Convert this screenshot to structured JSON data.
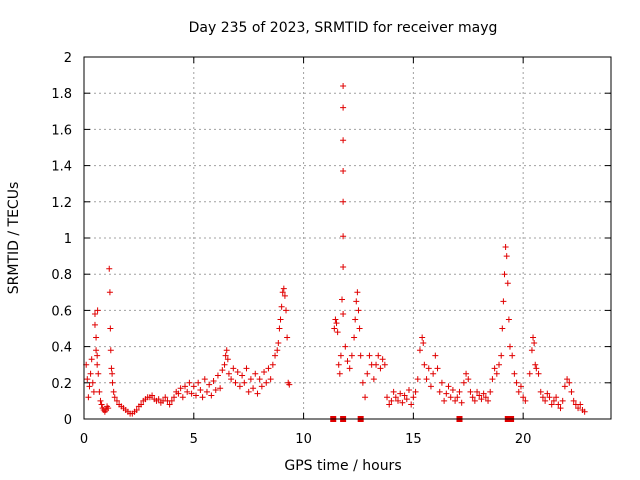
{
  "chart_data": {
    "type": "scatter",
    "title": "Day 235 of 2023, SRMTID for receiver mayg",
    "xlabel": "GPS time / hours",
    "ylabel": "SRMTID / TECUs",
    "xlim": [
      0,
      24
    ],
    "ylim": [
      0,
      2
    ],
    "x_ticks": [
      0,
      5,
      10,
      15,
      20
    ],
    "y_ticks": [
      0,
      0.2,
      0.4,
      0.6,
      0.8,
      1,
      1.2,
      1.4,
      1.6,
      1.8,
      2
    ],
    "x_tick_labels": [
      "0",
      "5",
      "10",
      "15",
      "20"
    ],
    "y_tick_labels": [
      "0",
      "0.2",
      "0.4",
      "0.6",
      "0.8",
      "1",
      "1.2",
      "1.4",
      "1.6",
      "1.8",
      "2"
    ],
    "grid": true,
    "marker": "plus",
    "series": [
      {
        "name": "SRMTID",
        "color": "#e00000",
        "points": [
          [
            0.1,
            0.3
          ],
          [
            0.15,
            0.22
          ],
          [
            0.2,
            0.12
          ],
          [
            0.25,
            0.18
          ],
          [
            0.3,
            0.25
          ],
          [
            0.35,
            0.33
          ],
          [
            0.4,
            0.2
          ],
          [
            0.45,
            0.15
          ],
          [
            0.5,
            0.58
          ],
          [
            0.5,
            0.52
          ],
          [
            0.55,
            0.45
          ],
          [
            0.55,
            0.38
          ],
          [
            0.6,
            0.3
          ],
          [
            0.6,
            0.35
          ],
          [
            0.62,
            0.6
          ],
          [
            0.65,
            0.25
          ],
          [
            0.7,
            0.15
          ],
          [
            0.75,
            0.1
          ],
          [
            0.8,
            0.08
          ],
          [
            0.85,
            0.06
          ],
          [
            0.9,
            0.05
          ],
          [
            0.95,
            0.04
          ],
          [
            1.0,
            0.05
          ],
          [
            1.05,
            0.07
          ],
          [
            1.1,
            0.06
          ],
          [
            1.15,
            0.83
          ],
          [
            1.18,
            0.7
          ],
          [
            1.2,
            0.5
          ],
          [
            1.22,
            0.38
          ],
          [
            1.25,
            0.28
          ],
          [
            1.28,
            0.25
          ],
          [
            1.3,
            0.2
          ],
          [
            1.35,
            0.15
          ],
          [
            1.4,
            0.12
          ],
          [
            1.5,
            0.1
          ],
          [
            1.6,
            0.08
          ],
          [
            1.7,
            0.07
          ],
          [
            1.8,
            0.06
          ],
          [
            1.9,
            0.05
          ],
          [
            2.0,
            0.04
          ],
          [
            2.1,
            0.03
          ],
          [
            2.2,
            0.03
          ],
          [
            2.3,
            0.04
          ],
          [
            2.4,
            0.05
          ],
          [
            2.5,
            0.07
          ],
          [
            2.6,
            0.08
          ],
          [
            2.7,
            0.1
          ],
          [
            2.8,
            0.11
          ],
          [
            2.9,
            0.12
          ],
          [
            3.0,
            0.12
          ],
          [
            3.1,
            0.13
          ],
          [
            3.2,
            0.11
          ],
          [
            3.3,
            0.1
          ],
          [
            3.4,
            0.11
          ],
          [
            3.5,
            0.09
          ],
          [
            3.6,
            0.1
          ],
          [
            3.7,
            0.12
          ],
          [
            3.8,
            0.1
          ],
          [
            3.9,
            0.08
          ],
          [
            4.0,
            0.1
          ],
          [
            4.1,
            0.12
          ],
          [
            4.2,
            0.15
          ],
          [
            4.3,
            0.14
          ],
          [
            4.4,
            0.17
          ],
          [
            4.5,
            0.12
          ],
          [
            4.6,
            0.18
          ],
          [
            4.7,
            0.15
          ],
          [
            4.8,
            0.2
          ],
          [
            4.9,
            0.14
          ],
          [
            5.0,
            0.18
          ],
          [
            5.1,
            0.13
          ],
          [
            5.2,
            0.2
          ],
          [
            5.3,
            0.16
          ],
          [
            5.4,
            0.12
          ],
          [
            5.5,
            0.22
          ],
          [
            5.6,
            0.15
          ],
          [
            5.7,
            0.19
          ],
          [
            5.8,
            0.13
          ],
          [
            5.9,
            0.21
          ],
          [
            6.0,
            0.16
          ],
          [
            6.1,
            0.24
          ],
          [
            6.2,
            0.17
          ],
          [
            6.3,
            0.27
          ],
          [
            6.4,
            0.3
          ],
          [
            6.45,
            0.35
          ],
          [
            6.5,
            0.38
          ],
          [
            6.55,
            0.33
          ],
          [
            6.6,
            0.25
          ],
          [
            6.7,
            0.22
          ],
          [
            6.8,
            0.28
          ],
          [
            6.9,
            0.2
          ],
          [
            7.0,
            0.26
          ],
          [
            7.1,
            0.18
          ],
          [
            7.2,
            0.24
          ],
          [
            7.3,
            0.2
          ],
          [
            7.4,
            0.28
          ],
          [
            7.5,
            0.15
          ],
          [
            7.6,
            0.22
          ],
          [
            7.7,
            0.17
          ],
          [
            7.8,
            0.25
          ],
          [
            7.9,
            0.14
          ],
          [
            8.0,
            0.22
          ],
          [
            8.1,
            0.18
          ],
          [
            8.2,
            0.26
          ],
          [
            8.3,
            0.2
          ],
          [
            8.4,
            0.28
          ],
          [
            8.5,
            0.22
          ],
          [
            8.6,
            0.3
          ],
          [
            8.7,
            0.35
          ],
          [
            8.8,
            0.38
          ],
          [
            8.85,
            0.42
          ],
          [
            8.9,
            0.5
          ],
          [
            8.95,
            0.55
          ],
          [
            9.0,
            0.62
          ],
          [
            9.05,
            0.7
          ],
          [
            9.1,
            0.72
          ],
          [
            9.15,
            0.68
          ],
          [
            9.2,
            0.6
          ],
          [
            9.25,
            0.45
          ],
          [
            9.3,
            0.2
          ],
          [
            9.35,
            0.19
          ],
          [
            11.4,
            0.5
          ],
          [
            11.45,
            0.55
          ],
          [
            11.5,
            0.53
          ],
          [
            11.55,
            0.48
          ],
          [
            11.6,
            0.3
          ],
          [
            11.65,
            0.25
          ],
          [
            11.7,
            0.35
          ],
          [
            11.75,
            0.66
          ],
          [
            11.8,
            1.84
          ],
          [
            11.8,
            1.72
          ],
          [
            11.8,
            1.54
          ],
          [
            11.8,
            1.37
          ],
          [
            11.8,
            1.2
          ],
          [
            11.8,
            1.01
          ],
          [
            11.8,
            0.84
          ],
          [
            11.8,
            0.58
          ],
          [
            11.9,
            0.4
          ],
          [
            12.0,
            0.32
          ],
          [
            12.1,
            0.28
          ],
          [
            12.2,
            0.35
          ],
          [
            12.3,
            0.45
          ],
          [
            12.35,
            0.55
          ],
          [
            12.4,
            0.65
          ],
          [
            12.45,
            0.7
          ],
          [
            12.5,
            0.6
          ],
          [
            12.55,
            0.5
          ],
          [
            12.6,
            0.35
          ],
          [
            12.7,
            0.2
          ],
          [
            12.8,
            0.12
          ],
          [
            12.9,
            0.25
          ],
          [
            13.0,
            0.35
          ],
          [
            13.1,
            0.3
          ],
          [
            13.2,
            0.22
          ],
          [
            13.3,
            0.3
          ],
          [
            13.4,
            0.35
          ],
          [
            13.5,
            0.28
          ],
          [
            13.6,
            0.33
          ],
          [
            13.7,
            0.3
          ],
          [
            13.8,
            0.12
          ],
          [
            13.9,
            0.08
          ],
          [
            14.0,
            0.1
          ],
          [
            14.1,
            0.15
          ],
          [
            14.2,
            0.12
          ],
          [
            14.3,
            0.1
          ],
          [
            14.4,
            0.14
          ],
          [
            14.5,
            0.09
          ],
          [
            14.6,
            0.13
          ],
          [
            14.7,
            0.11
          ],
          [
            14.8,
            0.16
          ],
          [
            14.9,
            0.08
          ],
          [
            15.0,
            0.12
          ],
          [
            15.1,
            0.15
          ],
          [
            15.2,
            0.22
          ],
          [
            15.3,
            0.38
          ],
          [
            15.4,
            0.45
          ],
          [
            15.45,
            0.42
          ],
          [
            15.5,
            0.3
          ],
          [
            15.6,
            0.22
          ],
          [
            15.7,
            0.28
          ],
          [
            15.8,
            0.18
          ],
          [
            15.9,
            0.25
          ],
          [
            16.0,
            0.35
          ],
          [
            16.1,
            0.28
          ],
          [
            16.2,
            0.15
          ],
          [
            16.3,
            0.2
          ],
          [
            16.4,
            0.1
          ],
          [
            16.5,
            0.14
          ],
          [
            16.6,
            0.18
          ],
          [
            16.7,
            0.12
          ],
          [
            16.8,
            0.16
          ],
          [
            16.9,
            0.1
          ],
          [
            17.0,
            0.12
          ],
          [
            17.1,
            0.15
          ],
          [
            17.2,
            0.09
          ],
          [
            17.3,
            0.2
          ],
          [
            17.4,
            0.25
          ],
          [
            17.5,
            0.22
          ],
          [
            17.6,
            0.15
          ],
          [
            17.7,
            0.12
          ],
          [
            17.8,
            0.1
          ],
          [
            17.9,
            0.15
          ],
          [
            18.0,
            0.13
          ],
          [
            18.1,
            0.11
          ],
          [
            18.2,
            0.14
          ],
          [
            18.3,
            0.12
          ],
          [
            18.4,
            0.1
          ],
          [
            18.5,
            0.15
          ],
          [
            18.6,
            0.22
          ],
          [
            18.7,
            0.28
          ],
          [
            18.8,
            0.25
          ],
          [
            18.9,
            0.3
          ],
          [
            19.0,
            0.35
          ],
          [
            19.05,
            0.5
          ],
          [
            19.1,
            0.65
          ],
          [
            19.15,
            0.8
          ],
          [
            19.2,
            0.95
          ],
          [
            19.25,
            0.9
          ],
          [
            19.3,
            0.75
          ],
          [
            19.35,
            0.55
          ],
          [
            19.4,
            0.4
          ],
          [
            19.5,
            0.35
          ],
          [
            19.6,
            0.25
          ],
          [
            19.7,
            0.2
          ],
          [
            19.8,
            0.15
          ],
          [
            19.9,
            0.18
          ],
          [
            20.0,
            0.12
          ],
          [
            20.1,
            0.1
          ],
          [
            20.3,
            0.25
          ],
          [
            20.4,
            0.38
          ],
          [
            20.45,
            0.45
          ],
          [
            20.5,
            0.42
          ],
          [
            20.55,
            0.3
          ],
          [
            20.6,
            0.28
          ],
          [
            20.7,
            0.25
          ],
          [
            20.8,
            0.15
          ],
          [
            20.9,
            0.12
          ],
          [
            21.0,
            0.1
          ],
          [
            21.1,
            0.14
          ],
          [
            21.2,
            0.12
          ],
          [
            21.3,
            0.08
          ],
          [
            21.4,
            0.1
          ],
          [
            21.5,
            0.12
          ],
          [
            21.6,
            0.08
          ],
          [
            21.7,
            0.06
          ],
          [
            21.8,
            0.1
          ],
          [
            21.9,
            0.18
          ],
          [
            22.0,
            0.22
          ],
          [
            22.1,
            0.2
          ],
          [
            22.2,
            0.15
          ],
          [
            22.3,
            0.1
          ],
          [
            22.4,
            0.08
          ],
          [
            22.5,
            0.06
          ],
          [
            22.6,
            0.08
          ],
          [
            22.7,
            0.05
          ],
          [
            22.8,
            0.04
          ]
        ]
      },
      {
        "name": "flagged-zero",
        "marker": "square",
        "color": "#e00000",
        "points": [
          [
            11.35,
            0.0
          ],
          [
            11.8,
            0.0
          ],
          [
            12.6,
            0.0
          ],
          [
            17.1,
            0.0
          ],
          [
            19.3,
            0.0
          ],
          [
            19.45,
            0.0
          ]
        ]
      }
    ]
  }
}
